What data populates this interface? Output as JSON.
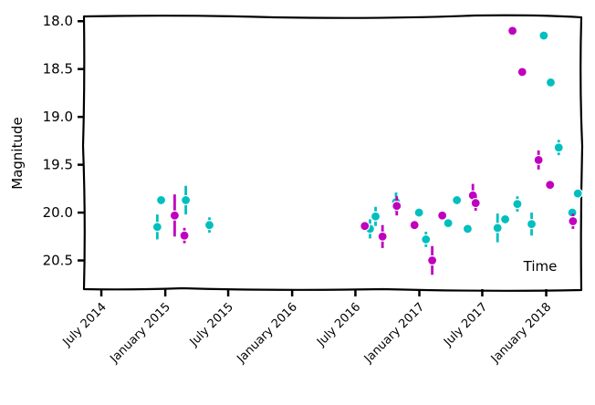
{
  "chart_data": {
    "type": "scatter",
    "title": "",
    "xlabel": "",
    "ylabel": "Magnitude",
    "annotation": "Time",
    "y_inverted": true,
    "ylim": [
      20.8,
      17.95
    ],
    "xlim": [
      "2014-05-12",
      "2018-04-12"
    ],
    "yticks": [
      18.0,
      18.5,
      19.0,
      19.5,
      20.0,
      20.5
    ],
    "ytick_labels": [
      "18.0",
      "18.5",
      "19.0",
      "19.5",
      "20.0",
      "20.5"
    ],
    "xticks": [
      "2014-07-01",
      "2015-01-01",
      "2015-07-01",
      "2016-01-01",
      "2016-07-01",
      "2017-01-01",
      "2017-07-01",
      "2018-01-01"
    ],
    "xtick_labels": [
      "July 2014",
      "January 2015",
      "July 2015",
      "January 2016",
      "July 2016",
      "January 2017",
      "July 2017",
      "January 2018"
    ],
    "grid": false,
    "legend": "none",
    "series": [
      {
        "color": "#00bfbf",
        "points": [
          {
            "date": "2014-12-09",
            "mag": 20.15,
            "err": 0.13
          },
          {
            "date": "2014-12-20",
            "mag": 19.87,
            "err": 0.05
          },
          {
            "date": "2015-03-01",
            "mag": 19.87,
            "err": 0.15
          },
          {
            "date": "2015-05-08",
            "mag": 20.13,
            "err": 0.08
          },
          {
            "date": "2016-08-12",
            "mag": 20.17,
            "err": 0.1
          },
          {
            "date": "2016-08-28",
            "mag": 20.04,
            "err": 0.1
          },
          {
            "date": "2016-10-26",
            "mag": 19.89,
            "err": 0.1
          },
          {
            "date": "2016-12-31",
            "mag": 20.0,
            "err": 0.05
          },
          {
            "date": "2017-01-20",
            "mag": 20.28,
            "err": 0.08
          },
          {
            "date": "2017-03-25",
            "mag": 20.11,
            "err": 0.05
          },
          {
            "date": "2017-04-19",
            "mag": 19.87,
            "err": 0.05
          },
          {
            "date": "2017-05-20",
            "mag": 20.17,
            "err": 0.03
          },
          {
            "date": "2017-08-14",
            "mag": 20.16,
            "err": 0.15
          },
          {
            "date": "2017-09-05",
            "mag": 20.07,
            "err": 0.05
          },
          {
            "date": "2017-10-10",
            "mag": 19.91,
            "err": 0.08
          },
          {
            "date": "2017-11-20",
            "mag": 20.12,
            "err": 0.12
          },
          {
            "date": "2017-12-25",
            "mag": 18.15,
            "err": 0.03
          },
          {
            "date": "2018-01-14",
            "mag": 18.64,
            "err": 0.03
          },
          {
            "date": "2018-02-06",
            "mag": 19.32,
            "err": 0.08
          },
          {
            "date": "2018-03-17",
            "mag": 20.0,
            "err": 0.03
          },
          {
            "date": "2018-04-02",
            "mag": 19.8,
            "err": 0.02
          }
        ]
      },
      {
        "color": "#bf00bf",
        "points": [
          {
            "date": "2015-01-28",
            "mag": 20.03,
            "err": 0.22
          },
          {
            "date": "2015-02-25",
            "mag": 20.24,
            "err": 0.08
          },
          {
            "date": "2016-07-28",
            "mag": 20.14,
            "err": 0.03
          },
          {
            "date": "2016-09-17",
            "mag": 20.25,
            "err": 0.12
          },
          {
            "date": "2016-10-28",
            "mag": 19.93,
            "err": 0.1
          },
          {
            "date": "2016-12-18",
            "mag": 20.13,
            "err": 0.05
          },
          {
            "date": "2017-02-07",
            "mag": 20.5,
            "err": 0.15
          },
          {
            "date": "2017-03-08",
            "mag": 20.03,
            "err": 0.05
          },
          {
            "date": "2017-06-04",
            "mag": 19.82,
            "err": 0.12
          },
          {
            "date": "2017-06-12",
            "mag": 19.9,
            "err": 0.08
          },
          {
            "date": "2017-09-26",
            "mag": 18.1,
            "err": 0.02
          },
          {
            "date": "2017-10-24",
            "mag": 18.53,
            "err": 0.02
          },
          {
            "date": "2017-12-10",
            "mag": 19.45,
            "err": 0.1
          },
          {
            "date": "2018-01-12",
            "mag": 19.71,
            "err": 0.03
          },
          {
            "date": "2018-03-19",
            "mag": 20.09,
            "err": 0.08
          }
        ]
      }
    ]
  }
}
